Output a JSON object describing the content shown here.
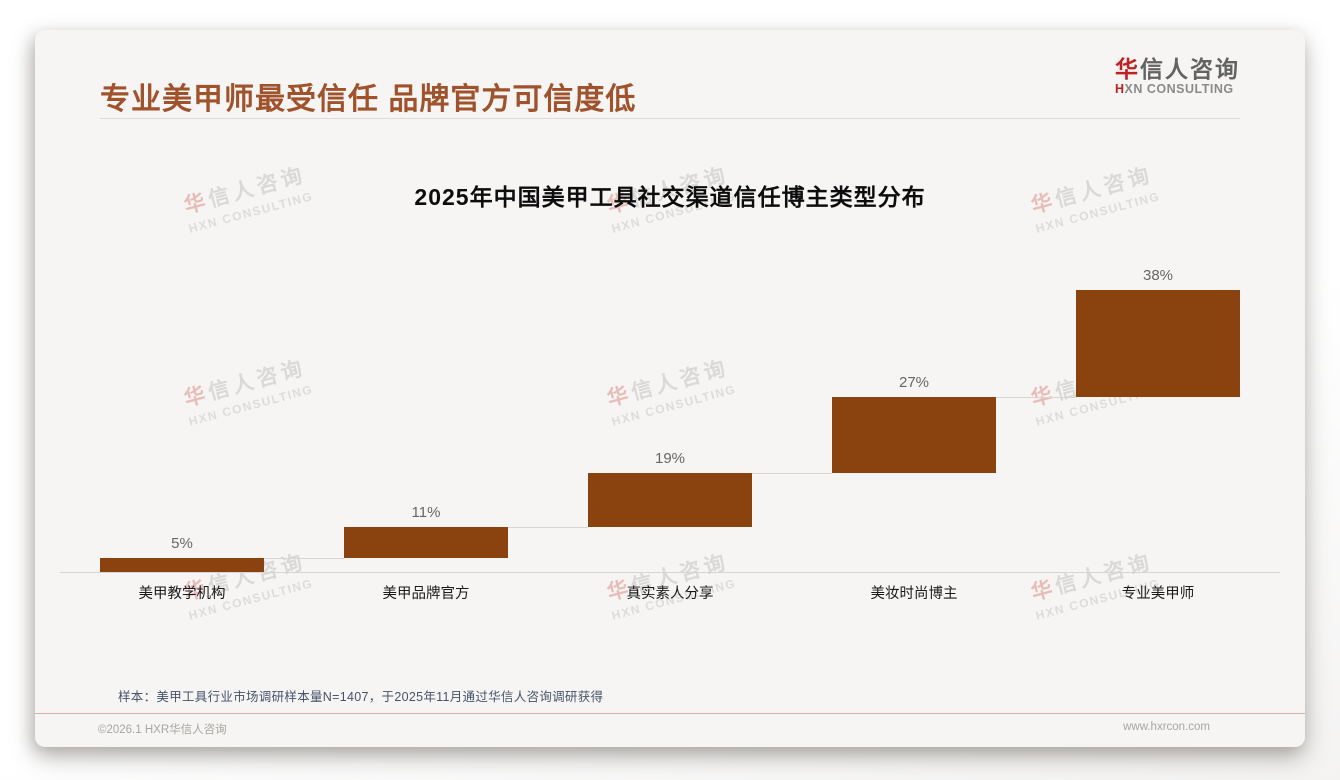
{
  "page": {
    "header": {
      "title": "专业美甲师最受信任 品牌官方可信度低"
    },
    "logo": {
      "name_accent": "华",
      "name_rest": "信人咨询",
      "sub_accent": "H",
      "sub_rest": "XN CONSULTING"
    },
    "watermark": {
      "line1_accent": "华",
      "line1_rest": "信人咨询",
      "line2": "HXN CONSULTING"
    },
    "footnote": "样本：美甲工具行业市场调研样本量N=1407，于2025年11月通过华信人咨询调研获得",
    "footer": {
      "left": "©2026.1 HXR华信人咨询",
      "right": "www.hxrcon.com"
    }
  },
  "colors": {
    "bar": "#8A430F",
    "header_title": "#A0522D",
    "logo_red": "#C02020",
    "footnote": "#44546A",
    "footer_divider": "#d9b0a2",
    "card_bg": "#f6f5f4"
  },
  "chart_data": {
    "type": "bar",
    "subtype": "waterfall-steps",
    "title": "2025年中国美甲工具社交渠道信任博主类型分布",
    "categories": [
      "美甲教学机构",
      "美甲品牌官方",
      "真实素人分享",
      "美妆时尚博主",
      "专业美甲师"
    ],
    "values": [
      5,
      11,
      19,
      27,
      38
    ],
    "value_labels": [
      "5%",
      "11%",
      "19%",
      "27%",
      "38%"
    ],
    "unit": "%",
    "ylim": [
      0,
      100
    ],
    "cumulative": true,
    "bar_color": "#8A430F",
    "legend": "none",
    "grid": "off"
  }
}
